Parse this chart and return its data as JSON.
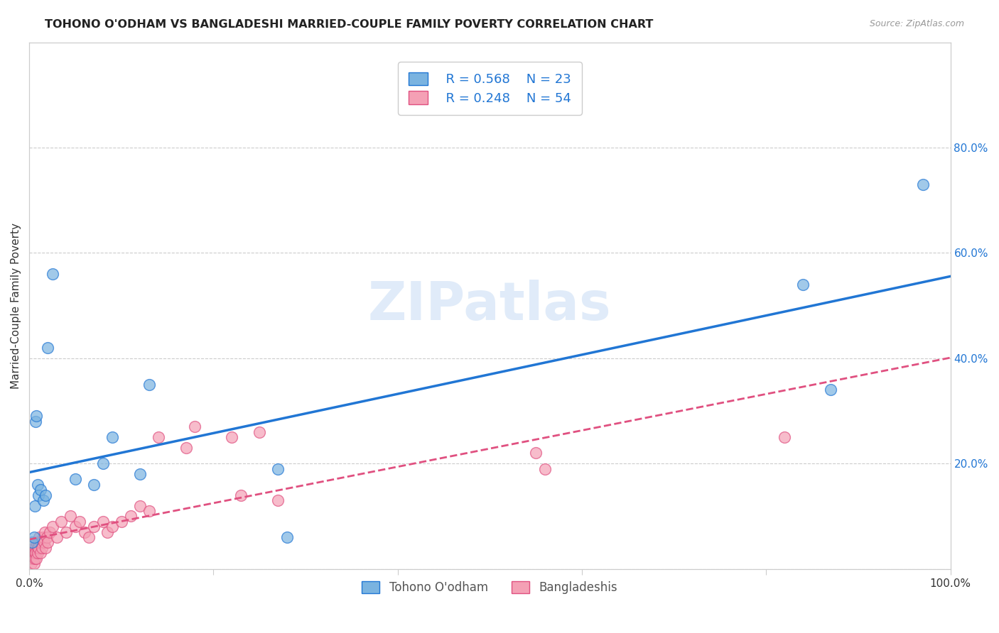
{
  "title": "TOHONO O'ODHAM VS BANGLADESHI MARRIED-COUPLE FAMILY POVERTY CORRELATION CHART",
  "source": "Source: ZipAtlas.com",
  "ylabel": "Married-Couple Family Poverty",
  "xlim": [
    0,
    1.0
  ],
  "ylim": [
    0,
    1.0
  ],
  "xticks": [
    0.0,
    0.2,
    0.4,
    0.6,
    0.8,
    1.0
  ],
  "xticklabels": [
    "0.0%",
    "",
    "",
    "",
    "",
    "100.0%"
  ],
  "yticks": [
    0.0,
    0.2,
    0.4,
    0.6,
    0.8
  ],
  "yticklabels": [
    "",
    "20.0%",
    "40.0%",
    "60.0%",
    "80.0%"
  ],
  "background_color": "#ffffff",
  "legend_r1": "R = 0.568",
  "legend_n1": "N = 23",
  "legend_r2": "R = 0.248",
  "legend_n2": "N = 54",
  "blue_color": "#7ab3e0",
  "pink_color": "#f4a0b5",
  "line_blue": "#2176d4",
  "line_pink": "#e05080",
  "label1": "Tohono O'odham",
  "label2": "Bangladeshis",
  "tohono_x": [
    0.003,
    0.005,
    0.006,
    0.007,
    0.008,
    0.009,
    0.01,
    0.012,
    0.015,
    0.018,
    0.02,
    0.025,
    0.05,
    0.07,
    0.08,
    0.09,
    0.12,
    0.13,
    0.27,
    0.28,
    0.84,
    0.87,
    0.97
  ],
  "tohono_y": [
    0.05,
    0.06,
    0.12,
    0.28,
    0.29,
    0.16,
    0.14,
    0.15,
    0.13,
    0.14,
    0.42,
    0.56,
    0.17,
    0.16,
    0.2,
    0.25,
    0.18,
    0.35,
    0.19,
    0.06,
    0.54,
    0.34,
    0.73
  ],
  "bangladeshi_x": [
    0.001,
    0.002,
    0.003,
    0.004,
    0.005,
    0.005,
    0.006,
    0.006,
    0.007,
    0.007,
    0.008,
    0.008,
    0.009,
    0.009,
    0.01,
    0.01,
    0.011,
    0.012,
    0.013,
    0.014,
    0.015,
    0.016,
    0.017,
    0.018,
    0.019,
    0.02,
    0.022,
    0.025,
    0.03,
    0.035,
    0.04,
    0.045,
    0.05,
    0.055,
    0.06,
    0.065,
    0.07,
    0.08,
    0.085,
    0.09,
    0.1,
    0.11,
    0.12,
    0.13,
    0.14,
    0.17,
    0.18,
    0.22,
    0.23,
    0.25,
    0.27,
    0.55,
    0.56,
    0.82
  ],
  "bangladeshi_y": [
    0.02,
    0.01,
    0.03,
    0.02,
    0.04,
    0.01,
    0.03,
    0.02,
    0.04,
    0.03,
    0.05,
    0.02,
    0.04,
    0.03,
    0.05,
    0.04,
    0.06,
    0.03,
    0.05,
    0.04,
    0.06,
    0.05,
    0.07,
    0.04,
    0.06,
    0.05,
    0.07,
    0.08,
    0.06,
    0.09,
    0.07,
    0.1,
    0.08,
    0.09,
    0.07,
    0.06,
    0.08,
    0.09,
    0.07,
    0.08,
    0.09,
    0.1,
    0.12,
    0.11,
    0.25,
    0.23,
    0.27,
    0.25,
    0.14,
    0.26,
    0.13,
    0.22,
    0.19,
    0.25
  ]
}
